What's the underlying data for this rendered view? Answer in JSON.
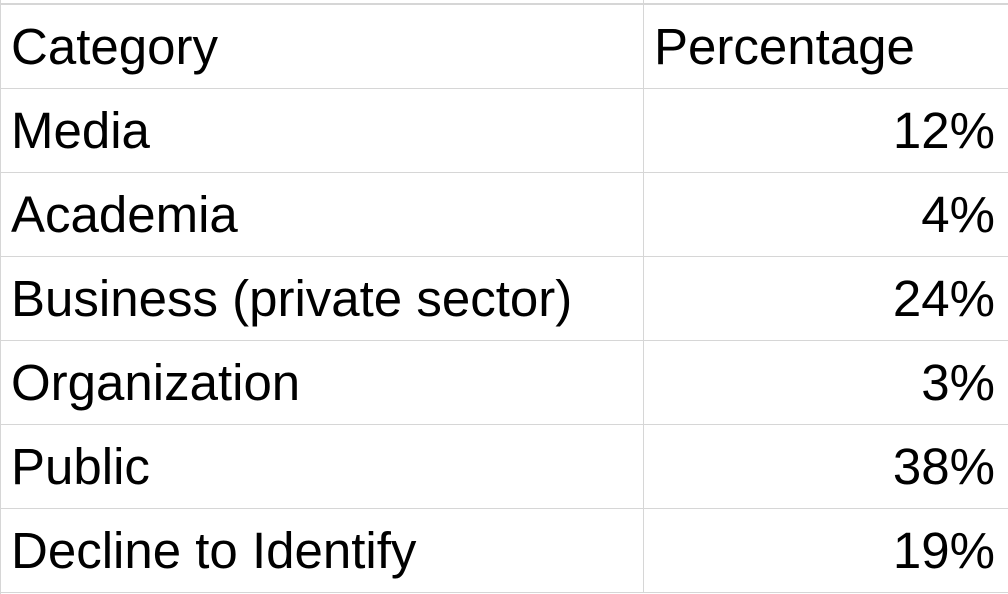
{
  "table": {
    "headers": [
      "Category",
      "Percentage"
    ],
    "rows": [
      {
        "category": "Media",
        "percentage": "12%"
      },
      {
        "category": "Academia",
        "percentage": "4%"
      },
      {
        "category": "Business (private sector)",
        "percentage": "24%"
      },
      {
        "category": "Organization",
        "percentage": "3%"
      },
      {
        "category": "Public",
        "percentage": "38%"
      },
      {
        "category": "Decline to Identify",
        "percentage": "19%"
      }
    ]
  },
  "colors": {
    "gridline": "#d6d6d6",
    "text": "#000000",
    "background": "#ffffff"
  }
}
